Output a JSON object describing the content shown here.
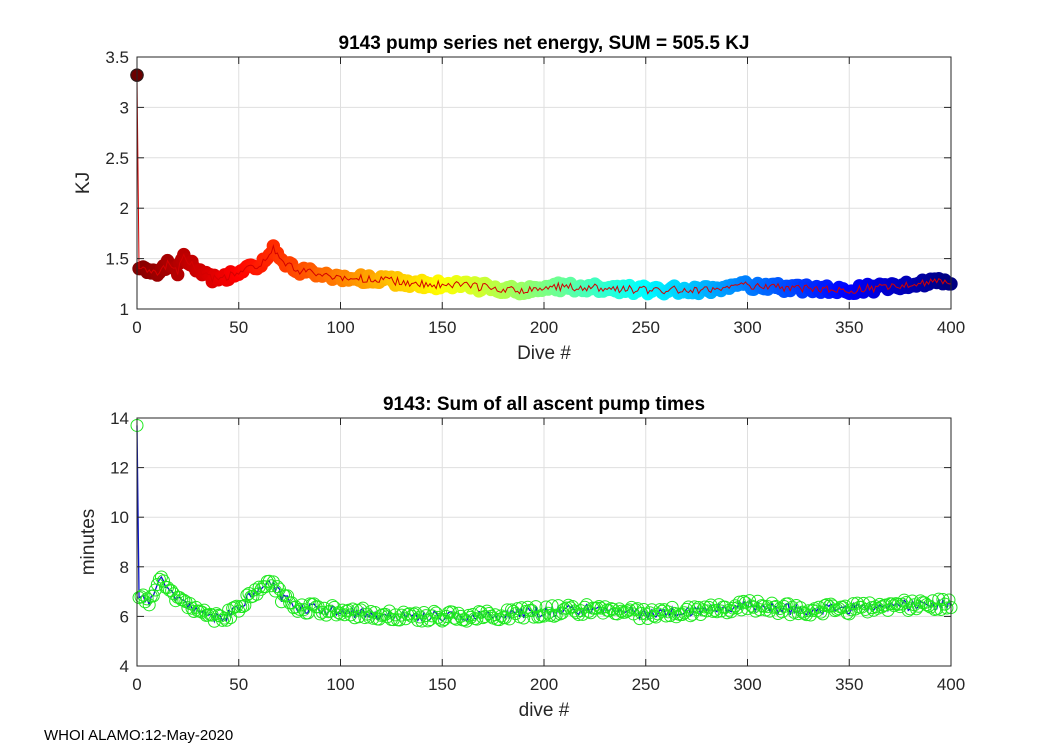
{
  "chart_data": [
    {
      "type": "scatter",
      "title": "9143 pump series net energy, SUM = 505.5 KJ",
      "xlabel": "Dive #",
      "ylabel": "KJ",
      "xlim": [
        0,
        400
      ],
      "ylim": [
        1,
        3.5
      ],
      "xticks": [
        0,
        50,
        100,
        150,
        200,
        250,
        300,
        350,
        400
      ],
      "yticks": [
        1,
        1.5,
        2,
        2.5,
        3,
        3.5
      ],
      "ytick_labels": [
        "1",
        "1.5",
        "2",
        "2.5",
        "3",
        "3.5"
      ],
      "grid": true,
      "colormap": "jet (dark red at start through yellow, green, cyan, blue to dark navy at end)",
      "marker": "filled circle, colored by dive index",
      "line_color": "#d40000",
      "anchor_points": [
        {
          "x": 0,
          "y": 3.32
        },
        {
          "x": 1,
          "y": 1.42
        },
        {
          "x": 5,
          "y": 1.38
        },
        {
          "x": 10,
          "y": 1.35
        },
        {
          "x": 15,
          "y": 1.45
        },
        {
          "x": 20,
          "y": 1.38
        },
        {
          "x": 23,
          "y": 1.52
        },
        {
          "x": 28,
          "y": 1.42
        },
        {
          "x": 35,
          "y": 1.33
        },
        {
          "x": 40,
          "y": 1.28
        },
        {
          "x": 45,
          "y": 1.32
        },
        {
          "x": 50,
          "y": 1.37
        },
        {
          "x": 55,
          "y": 1.4
        },
        {
          "x": 60,
          "y": 1.45
        },
        {
          "x": 65,
          "y": 1.52
        },
        {
          "x": 67,
          "y": 1.6
        },
        {
          "x": 72,
          "y": 1.46
        },
        {
          "x": 80,
          "y": 1.38
        },
        {
          "x": 90,
          "y": 1.34
        },
        {
          "x": 100,
          "y": 1.31
        },
        {
          "x": 120,
          "y": 1.29
        },
        {
          "x": 140,
          "y": 1.25
        },
        {
          "x": 160,
          "y": 1.23
        },
        {
          "x": 175,
          "y": 1.21
        },
        {
          "x": 190,
          "y": 1.18
        },
        {
          "x": 200,
          "y": 1.22
        },
        {
          "x": 225,
          "y": 1.21
        },
        {
          "x": 250,
          "y": 1.19
        },
        {
          "x": 275,
          "y": 1.19
        },
        {
          "x": 300,
          "y": 1.23
        },
        {
          "x": 325,
          "y": 1.21
        },
        {
          "x": 350,
          "y": 1.19
        },
        {
          "x": 375,
          "y": 1.23
        },
        {
          "x": 400,
          "y": 1.28
        }
      ],
      "noise_amplitude": 0.04,
      "n_points": 401
    },
    {
      "type": "scatter",
      "title": "9143: Sum of all ascent pump times",
      "xlabel": "dive #",
      "ylabel": "minutes",
      "xlim": [
        0,
        400
      ],
      "ylim": [
        4,
        14
      ],
      "xticks": [
        0,
        50,
        100,
        150,
        200,
        250,
        300,
        350,
        400
      ],
      "yticks": [
        4,
        6,
        8,
        10,
        12,
        14
      ],
      "ytick_labels": [
        "4",
        "6",
        "8",
        "10",
        "12",
        "14"
      ],
      "grid": true,
      "marker": "open circle",
      "marker_color": "#1ee81e",
      "line_color": "#0a14c8",
      "anchor_points": [
        {
          "x": 0,
          "y": 13.7
        },
        {
          "x": 1,
          "y": 6.9
        },
        {
          "x": 5,
          "y": 6.5
        },
        {
          "x": 12,
          "y": 7.5
        },
        {
          "x": 18,
          "y": 6.8
        },
        {
          "x": 25,
          "y": 6.4
        },
        {
          "x": 30,
          "y": 6.3
        },
        {
          "x": 35,
          "y": 6.0
        },
        {
          "x": 42,
          "y": 5.85
        },
        {
          "x": 50,
          "y": 6.4
        },
        {
          "x": 58,
          "y": 6.9
        },
        {
          "x": 66,
          "y": 7.3
        },
        {
          "x": 72,
          "y": 6.7
        },
        {
          "x": 80,
          "y": 6.35
        },
        {
          "x": 100,
          "y": 6.2
        },
        {
          "x": 125,
          "y": 6.05
        },
        {
          "x": 150,
          "y": 6.0
        },
        {
          "x": 175,
          "y": 6.05
        },
        {
          "x": 200,
          "y": 6.2
        },
        {
          "x": 225,
          "y": 6.3
        },
        {
          "x": 250,
          "y": 6.1
        },
        {
          "x": 275,
          "y": 6.2
        },
        {
          "x": 300,
          "y": 6.45
        },
        {
          "x": 325,
          "y": 6.25
        },
        {
          "x": 350,
          "y": 6.3
        },
        {
          "x": 375,
          "y": 6.45
        },
        {
          "x": 400,
          "y": 6.5
        }
      ],
      "noise_amplitude": 0.22,
      "n_points": 401
    }
  ],
  "footer": "WHOI ALAMO:12-May-2020"
}
